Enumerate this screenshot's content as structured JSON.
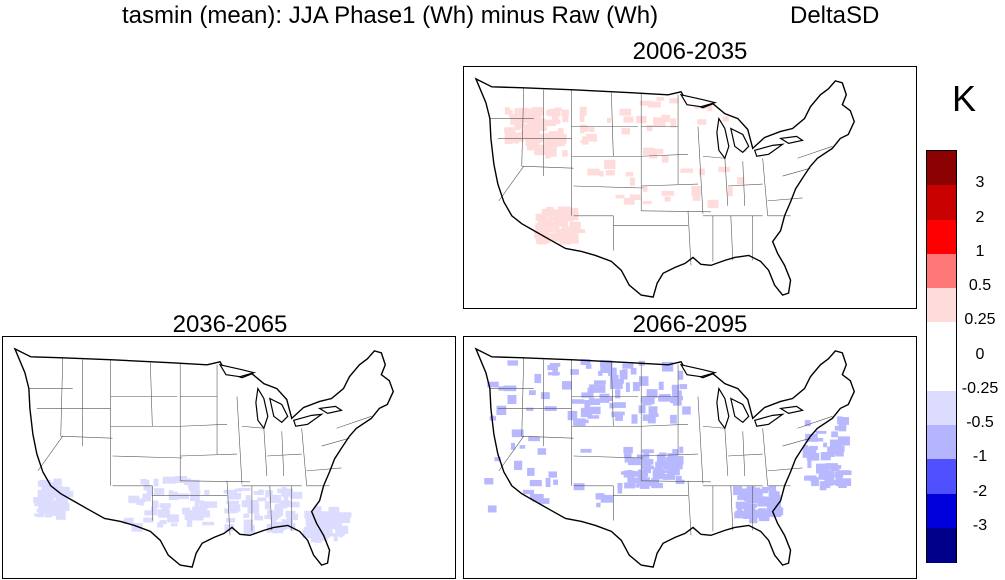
{
  "figure": {
    "title": "tasmin (mean): JJA Phase1 (Wh) minus Raw (Wh)",
    "method": "DeltaSD",
    "units": "K"
  },
  "panels": [
    {
      "period": "2006-2035",
      "anomaly": "positive-light",
      "anomaly_color": "#ffdcdc"
    },
    {
      "period": "2036-2065",
      "anomaly": "negative-light",
      "anomaly_color": "#dcdcff"
    },
    {
      "period": "2066-2095",
      "anomaly": "negative-moderate",
      "anomaly_color": "#b8b8ff"
    }
  ],
  "colorbar": {
    "labels": [
      "3",
      "2",
      "1",
      "0.5",
      "0.25",
      "0",
      "-0.25",
      "-0.5",
      "-1",
      "-2",
      "-3"
    ],
    "colors": [
      "#8b0000",
      "#c80000",
      "#ff0000",
      "#ff7878",
      "#ffdcdc",
      "#ffffff",
      "#ffffff",
      "#dcdcff",
      "#b4b4ff",
      "#5050ff",
      "#0000dc",
      "#00008b"
    ]
  }
}
